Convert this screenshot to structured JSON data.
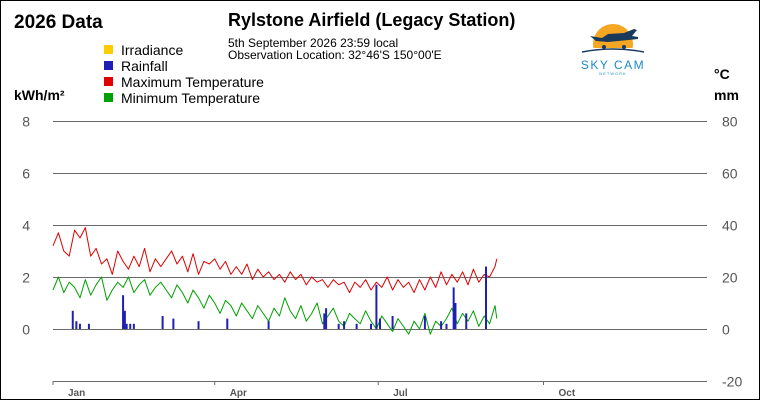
{
  "header": {
    "year_title": "2026 Data",
    "station_title": "Rylstone Airfield (Legacy Station)",
    "observation_date": "5th September 2026  23:59 local",
    "observation_location": "Observation Location:   32°46'S 150°00'E"
  },
  "logo": {
    "brand": "SKY CAM",
    "tagline": "NETWORK",
    "colors": {
      "sun": "#f5a623",
      "text": "#1e88c8",
      "plane": "#1a3a5c"
    }
  },
  "units": {
    "left": "kWh/m²",
    "right_top": "°C",
    "right_bottom": "mm"
  },
  "legend": [
    {
      "label": "Irradiance",
      "color": "#ffcc00"
    },
    {
      "label": "Rainfall",
      "color": "#1f1fb4"
    },
    {
      "label": "Maximum Temperature",
      "color": "#e00000"
    },
    {
      "label": "Minimum Temperature",
      "color": "#00a000"
    }
  ],
  "chart_data": {
    "type": "line",
    "title": "Rylstone Airfield (Legacy Station)",
    "left_axis": {
      "label": "kWh/m²",
      "ticks": [
        0,
        2,
        4,
        6,
        8
      ],
      "range": [
        -2,
        8
      ]
    },
    "right_axis": {
      "label": "°C / mm",
      "ticks": [
        -20,
        0,
        20,
        40,
        60,
        80
      ],
      "range": [
        -20,
        80
      ]
    },
    "x_axis": {
      "range_days": [
        1,
        365
      ],
      "month_labels": [
        {
          "label": "Jan",
          "day": 1
        },
        {
          "label": "Apr",
          "day": 91
        },
        {
          "label": "Jul",
          "day": 182
        },
        {
          "label": "Oct",
          "day": 274
        }
      ]
    },
    "grid": true,
    "series": [
      {
        "name": "Maximum Temperature",
        "color": "#e00000",
        "axis": "right",
        "kind": "line",
        "x": [
          1,
          4,
          7,
          10,
          13,
          16,
          19,
          22,
          25,
          28,
          31,
          34,
          37,
          40,
          43,
          46,
          49,
          52,
          55,
          58,
          61,
          64,
          67,
          70,
          73,
          76,
          79,
          82,
          85,
          88,
          91,
          94,
          97,
          100,
          103,
          106,
          109,
          112,
          115,
          118,
          121,
          124,
          127,
          130,
          133,
          136,
          139,
          142,
          145,
          148,
          151,
          154,
          157,
          160,
          163,
          166,
          169,
          172,
          175,
          178,
          181,
          184,
          187,
          190,
          193,
          196,
          199,
          202,
          205,
          208,
          211,
          214,
          217,
          220,
          223,
          226,
          229,
          232,
          235,
          238,
          241,
          244,
          247,
          248
        ],
        "values": [
          32,
          37,
          30,
          28,
          38,
          35,
          39,
          28,
          31,
          25,
          27,
          21,
          30,
          26,
          23,
          28,
          24,
          31,
          22,
          27,
          24,
          27,
          30,
          25,
          28,
          22,
          29,
          21,
          26,
          25,
          27,
          23,
          26,
          21,
          24,
          21,
          25,
          19,
          23,
          20,
          22,
          19,
          21,
          18,
          22,
          19,
          21,
          17,
          20,
          18,
          19,
          16,
          19,
          17,
          18,
          14,
          18,
          16,
          19,
          15,
          18,
          16,
          20,
          15,
          19,
          16,
          18,
          14,
          19,
          15,
          20,
          16,
          22,
          17,
          21,
          18,
          22,
          17,
          23,
          18,
          21,
          20,
          24,
          27
        ]
      },
      {
        "name": "Minimum Temperature",
        "color": "#00a000",
        "axis": "right",
        "kind": "line",
        "x": [
          1,
          4,
          7,
          10,
          13,
          16,
          19,
          22,
          25,
          28,
          31,
          34,
          37,
          40,
          43,
          46,
          49,
          52,
          55,
          58,
          61,
          64,
          67,
          70,
          73,
          76,
          79,
          82,
          85,
          88,
          91,
          94,
          97,
          100,
          103,
          106,
          109,
          112,
          115,
          118,
          121,
          124,
          127,
          130,
          133,
          136,
          139,
          142,
          145,
          148,
          151,
          154,
          157,
          160,
          163,
          166,
          169,
          172,
          175,
          178,
          181,
          184,
          187,
          190,
          193,
          196,
          199,
          202,
          205,
          208,
          211,
          214,
          217,
          220,
          223,
          226,
          229,
          232,
          235,
          238,
          241,
          244,
          247,
          248
        ],
        "values": [
          15,
          20,
          14,
          18,
          16,
          12,
          19,
          13,
          17,
          20,
          11,
          15,
          18,
          16,
          20,
          14,
          17,
          19,
          13,
          16,
          18,
          15,
          12,
          17,
          14,
          10,
          15,
          12,
          8,
          13,
          10,
          6,
          11,
          9,
          5,
          10,
          7,
          4,
          9,
          6,
          3,
          8,
          5,
          12,
          7,
          4,
          9,
          3,
          6,
          10,
          2,
          5,
          8,
          3,
          1,
          6,
          4,
          2,
          7,
          3,
          0,
          5,
          2,
          -1,
          4,
          1,
          -2,
          3,
          0,
          6,
          -2,
          3,
          1,
          4,
          8,
          2,
          6,
          3,
          7,
          1,
          5,
          2,
          9,
          4
        ]
      },
      {
        "name": "Rainfall",
        "color": "#1f1fb4",
        "axis": "right",
        "kind": "bar",
        "x": [
          12,
          14,
          16,
          21,
          40,
          41,
          42,
          44,
          46,
          62,
          68,
          82,
          98,
          121,
          152,
          153,
          160,
          163,
          170,
          178,
          181,
          183,
          190,
          208,
          217,
          220,
          224,
          225,
          231,
          242
        ],
        "values": [
          7,
          3,
          2,
          2,
          13,
          7,
          2,
          2,
          2,
          5,
          4,
          3,
          4,
          3,
          6,
          8,
          2,
          3,
          2,
          2,
          17,
          4,
          5,
          5,
          3,
          2,
          16,
          10,
          6,
          24
        ]
      },
      {
        "name": "Irradiance",
        "color": "#ffcc00",
        "axis": "left",
        "kind": "line",
        "x": [],
        "values": []
      }
    ]
  }
}
